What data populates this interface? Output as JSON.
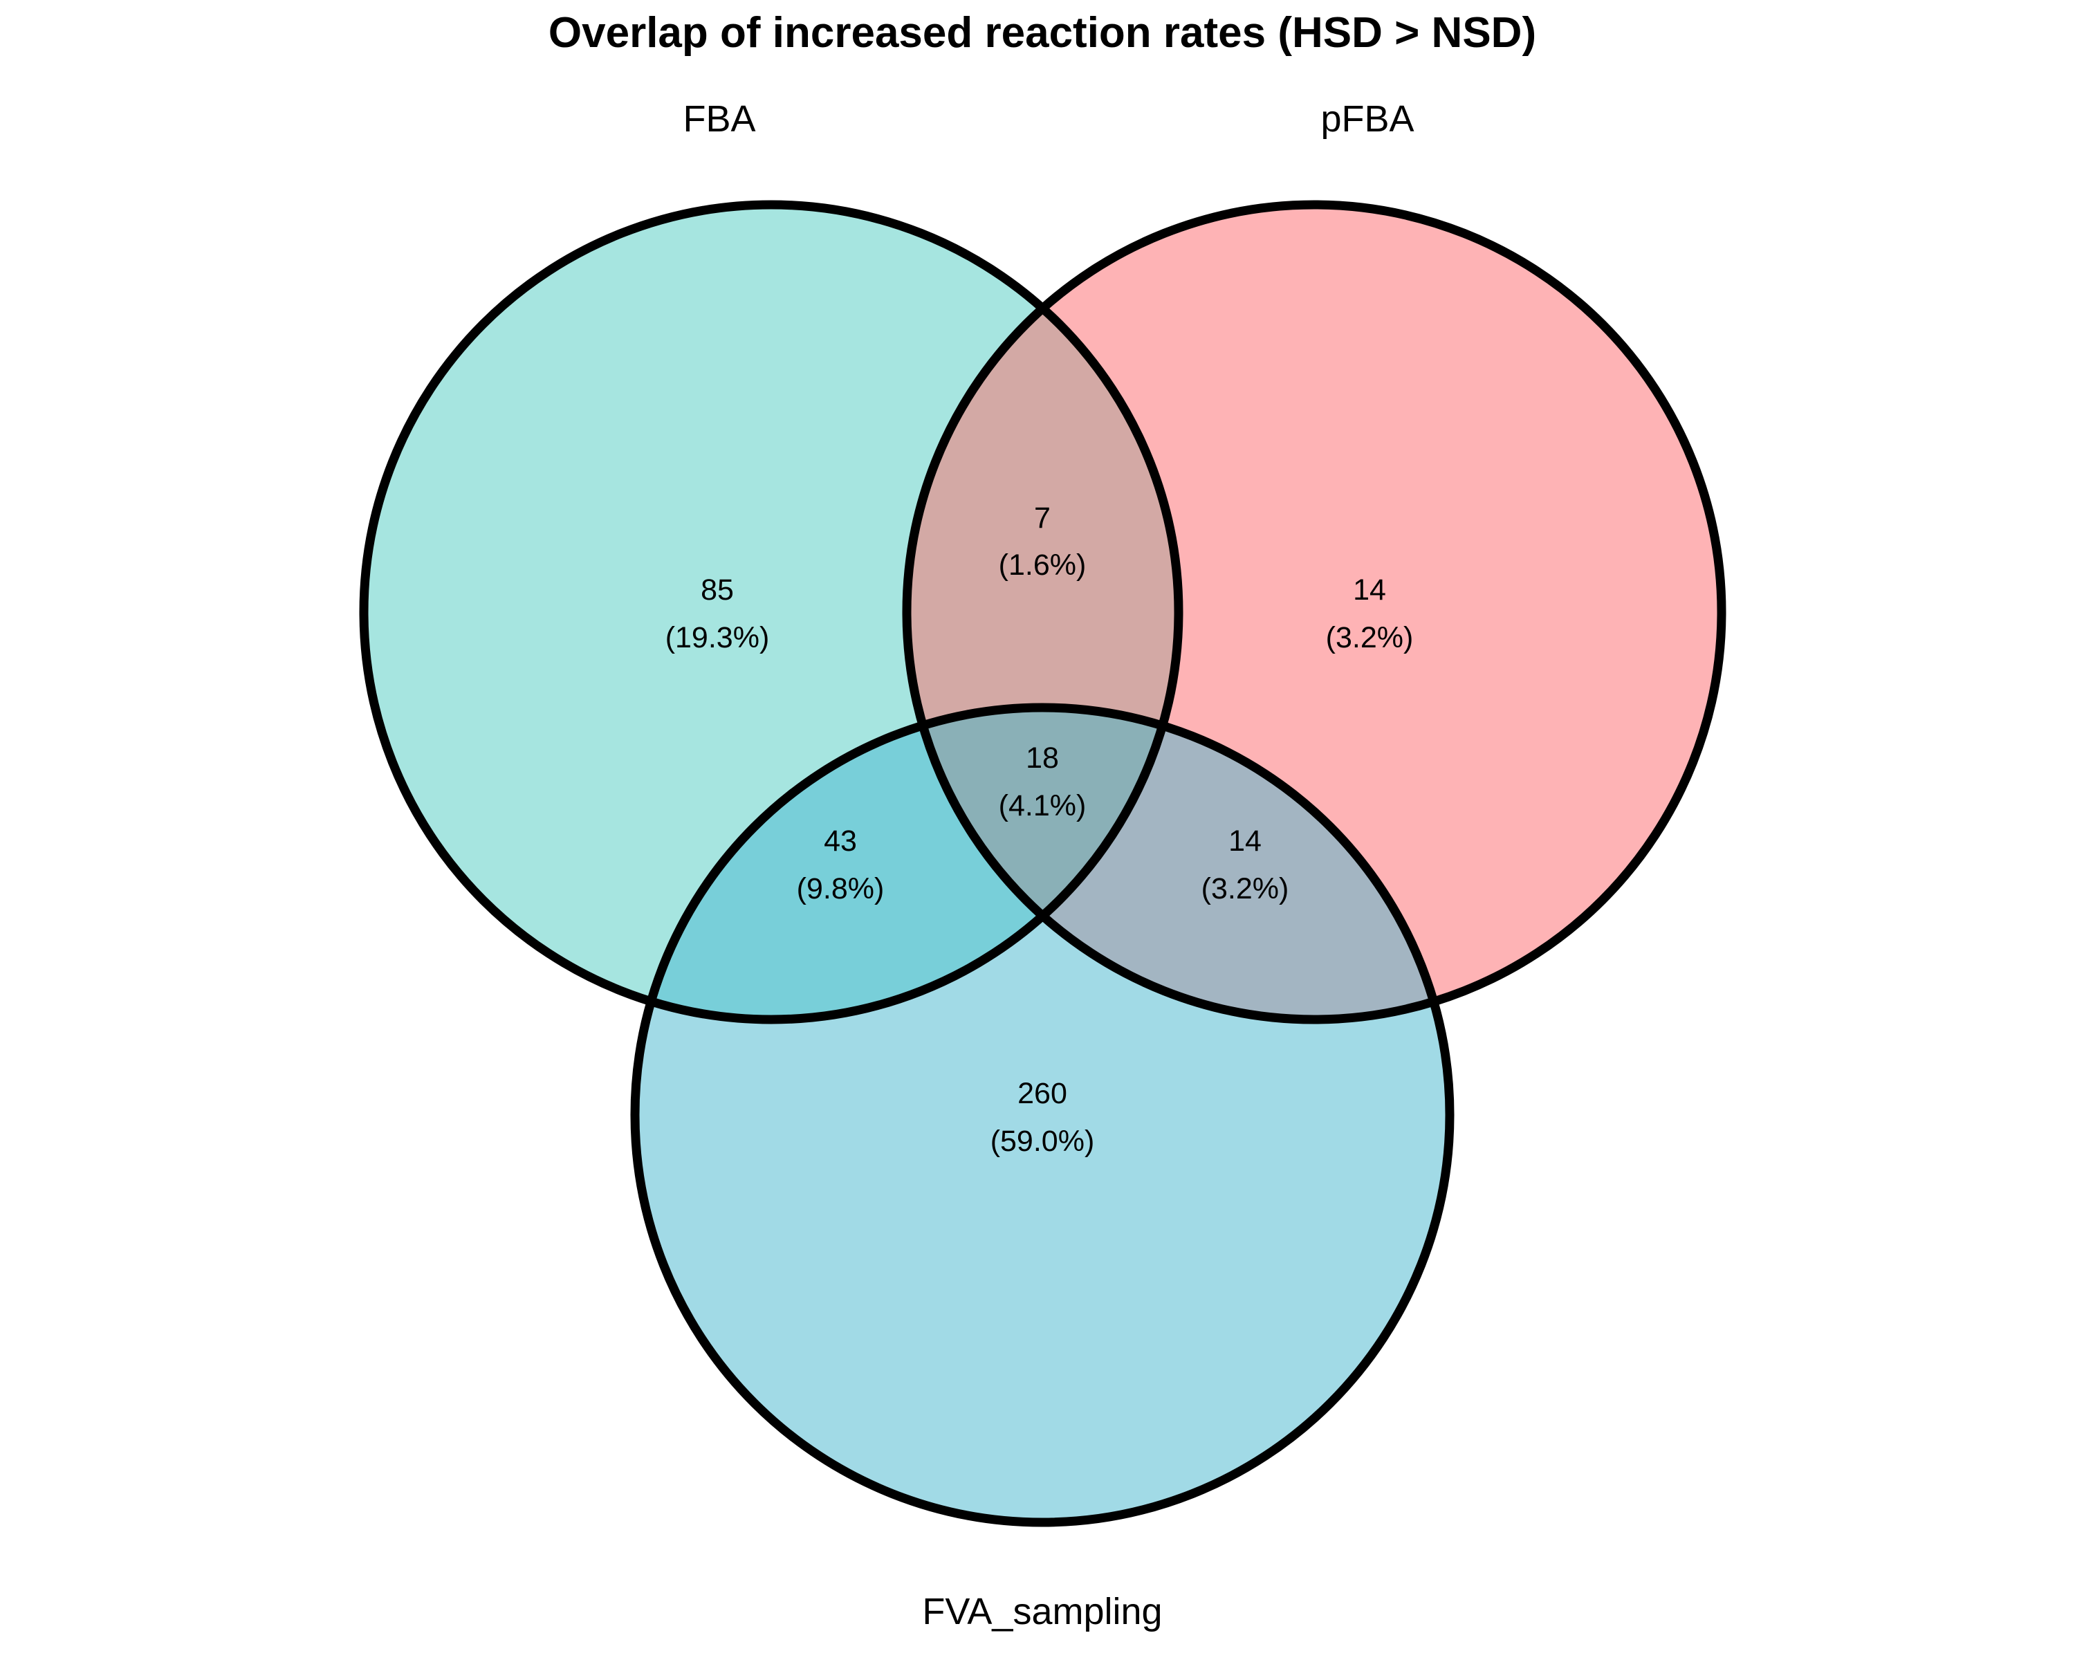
{
  "title": "Overlap of increased reaction rates (HSD > NSD)",
  "sets": [
    {
      "id": "fba",
      "name": "FBA",
      "color": "#8edfd6"
    },
    {
      "id": "pfba",
      "name": "pFBA",
      "color": "#ff9da0"
    },
    {
      "id": "fva",
      "name": "FVA_sampling",
      "color": "#88d0e1"
    }
  ],
  "regions": [
    {
      "id": "fba-only",
      "sets": [
        "FBA"
      ],
      "count": "85",
      "percent": "(19.3%)",
      "color": "#a6e5e0"
    },
    {
      "id": "pfba-only",
      "sets": [
        "pFBA"
      ],
      "count": "14",
      "percent": "(3.2%)",
      "color": "#feb3b5"
    },
    {
      "id": "fva-only",
      "sets": [
        "FVA_sampling"
      ],
      "count": "260",
      "percent": "(59.0%)",
      "color": "#a1dae6"
    },
    {
      "id": "fba-pfba",
      "sets": [
        "FBA",
        "pFBA"
      ],
      "count": "7",
      "percent": "(1.6%)",
      "color": "#d3a9a5"
    },
    {
      "id": "fba-fva",
      "sets": [
        "FBA",
        "FVA_sampling"
      ],
      "count": "43",
      "percent": "(9.8%)",
      "color": "#78cfd9"
    },
    {
      "id": "pfba-fva",
      "sets": [
        "pFBA",
        "FVA_sampling"
      ],
      "count": "14",
      "percent": "(3.2%)",
      "color": "#a3b5c2"
    },
    {
      "id": "all-three",
      "sets": [
        "FBA",
        "pFBA",
        "FVA_sampling"
      ],
      "count": "18",
      "percent": "(4.1%)",
      "color": "#8ab0b7"
    }
  ]
}
